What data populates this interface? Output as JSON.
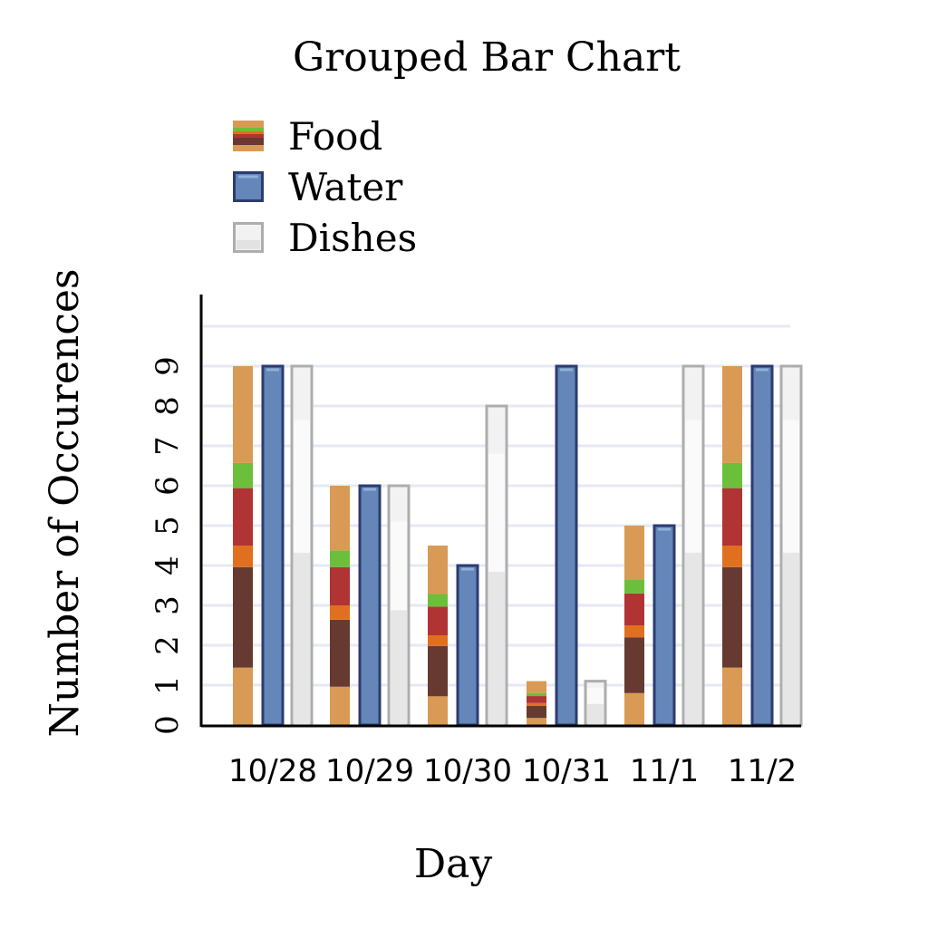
{
  "chart_data": {
    "type": "bar",
    "title": "Grouped Bar Chart",
    "xlabel": "Day",
    "ylabel": "Number of Occurences",
    "categories": [
      "10/28",
      "10/29",
      "10/30",
      "10/31",
      "11/1",
      "11/2"
    ],
    "yticks": [
      "0",
      "1",
      "2",
      "3",
      "4",
      "5",
      "6",
      "7",
      "8",
      "9"
    ],
    "ylim": [
      0,
      10
    ],
    "grid": true,
    "legend_position": "top-left",
    "series": [
      {
        "name": "Food",
        "values": [
          9,
          6,
          4.5,
          1.1,
          5,
          9
        ],
        "icon": "burger-icon"
      },
      {
        "name": "Water",
        "values": [
          9,
          6,
          4,
          9,
          5,
          9
        ],
        "icon": "water-icon"
      },
      {
        "name": "Dishes",
        "values": [
          9,
          6,
          8,
          1.1,
          9,
          9
        ],
        "icon": "dishes-icon"
      }
    ],
    "colors": {
      "food_bun": "#d99a55",
      "food_lettuce": "#6cbf3a",
      "food_tomato": "#b03434",
      "food_cheese": "#e07020",
      "food_patty": "#663a30",
      "water_fill": "#6486b8",
      "water_border": "#2c3c70",
      "water_highlight": "#8fb0d8",
      "dishes_fill": "#f2f2f2",
      "dishes_border": "#adadad",
      "grid": "#e4e9f3",
      "axis": "#000000"
    }
  }
}
